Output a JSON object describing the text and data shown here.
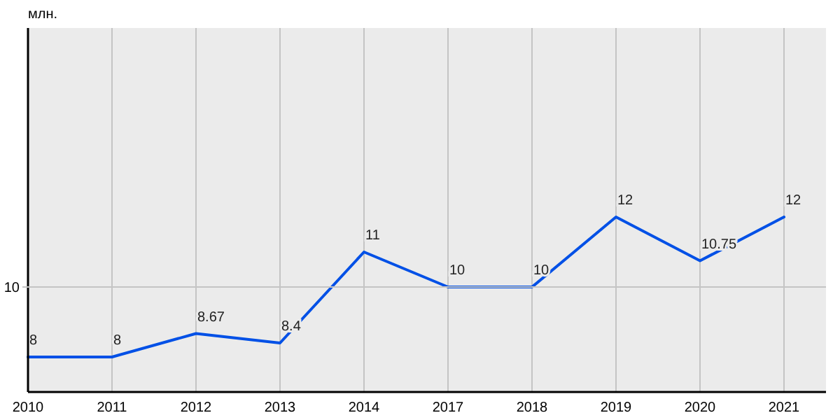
{
  "chart_data": {
    "type": "line",
    "ylabel": "млн.",
    "categories": [
      "2010",
      "2011",
      "2012",
      "2013",
      "2014",
      "2017",
      "2018",
      "2019",
      "2020",
      "2021"
    ],
    "series": [
      {
        "color": "#0050e6",
        "values": [
          8,
          8,
          8.67,
          8.4,
          11,
          10,
          10,
          12,
          10.75,
          12
        ]
      }
    ],
    "ylim": [
      7,
      17.4
    ],
    "ref_lines": [
      {
        "axis": "y",
        "value": 10,
        "label": "10"
      }
    ],
    "grid": "x",
    "data_labels": true,
    "marker": "none",
    "line_style": "solid"
  }
}
